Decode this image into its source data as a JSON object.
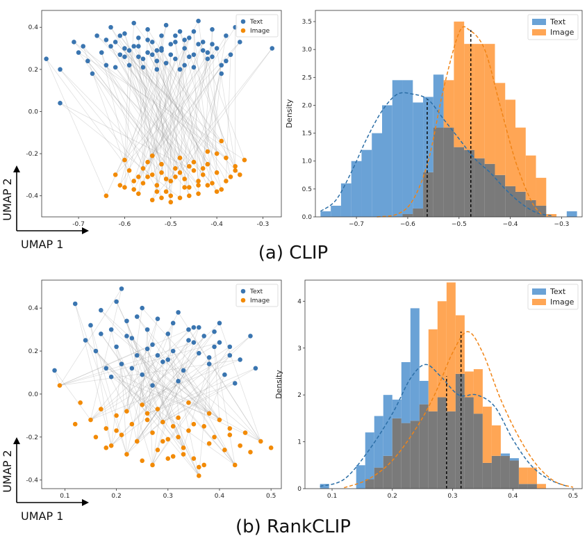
{
  "colors": {
    "text_scatter": "#3a75b0",
    "image_scatter": "#f28a05",
    "text_hist": "#6aa2d6",
    "image_hist": "#ffa655",
    "overlap": "#7a7a7a",
    "text_kde": "#2b6ea6",
    "image_kde": "#f08416",
    "link": "#8f8f8f"
  },
  "captions": [
    "(a) CLIP",
    "(b) RankCLIP"
  ],
  "chart_data": [
    {
      "type": "scatter",
      "panel": "clip-umap",
      "axis_arrow_labels": {
        "x": "UMAP 1",
        "y": "UMAP 2"
      },
      "legend": [
        "Text",
        "Image"
      ],
      "legend_position": "top-right",
      "xlim": [
        -0.78,
        -0.26
      ],
      "ylim": [
        -0.5,
        0.48
      ],
      "xticks": [
        "-0.7",
        "-0.6",
        "-0.5",
        "-0.4",
        "-0.3"
      ],
      "xtick_values": [
        -0.7,
        -0.6,
        -0.5,
        -0.4,
        -0.3
      ],
      "yticks": [
        "-0.4",
        "-0.2",
        "0.0",
        "0.2",
        "0.4"
      ],
      "ytick_values": [
        -0.4,
        -0.2,
        0.0,
        0.2,
        0.4
      ],
      "lines_connect_pairs": true,
      "series": [
        {
          "name": "Text",
          "x": [
            -0.77,
            -0.74,
            -0.74,
            -0.71,
            -0.7,
            -0.69,
            -0.68,
            -0.67,
            -0.66,
            -0.65,
            -0.64,
            -0.63,
            -0.62,
            -0.61,
            -0.6,
            -0.6,
            -0.59,
            -0.58,
            -0.57,
            -0.56,
            -0.55,
            -0.55,
            -0.54,
            -0.53,
            -0.52,
            -0.52,
            -0.51,
            -0.5,
            -0.49,
            -0.48,
            -0.47,
            -0.47,
            -0.46,
            -0.45,
            -0.44,
            -0.43,
            -0.42,
            -0.41,
            -0.4,
            -0.39,
            -0.38,
            -0.37,
            -0.36,
            -0.35,
            -0.28,
            -0.63,
            -0.61,
            -0.59,
            -0.57,
            -0.55,
            -0.53,
            -0.51,
            -0.49,
            -0.47,
            -0.45,
            -0.43,
            -0.41,
            -0.39,
            -0.62,
            -0.58,
            -0.54,
            -0.5,
            -0.46,
            -0.42,
            -0.38,
            -0.56,
            -0.52,
            -0.48,
            -0.44,
            -0.64,
            -0.6,
            -0.57,
            -0.53,
            -0.49,
            -0.45,
            -0.41
          ],
          "y": [
            0.25,
            0.2,
            0.04,
            0.33,
            0.28,
            0.31,
            0.24,
            0.18,
            0.36,
            0.28,
            0.22,
            0.4,
            0.33,
            0.27,
            0.3,
            0.37,
            0.22,
            0.42,
            0.35,
            0.25,
            0.28,
            0.39,
            0.33,
            0.24,
            0.36,
            0.3,
            0.41,
            0.27,
            0.33,
            0.38,
            0.22,
            0.3,
            0.35,
            0.27,
            0.43,
            0.33,
            0.25,
            0.39,
            0.3,
            0.22,
            0.36,
            0.27,
            0.4,
            0.33,
            0.3,
            0.31,
            0.36,
            0.29,
            0.26,
            0.34,
            0.29,
            0.23,
            0.25,
            0.34,
            0.38,
            0.29,
            0.32,
            0.18,
            0.21,
            0.31,
            0.27,
            0.32,
            0.26,
            0.28,
            0.24,
            0.21,
            0.29,
            0.2,
            0.32,
            0.34,
            0.26,
            0.31,
            0.2,
            0.36,
            0.21,
            0.26
          ]
        },
        {
          "name": "Image",
          "x": [
            -0.64,
            -0.62,
            -0.6,
            -0.59,
            -0.58,
            -0.57,
            -0.56,
            -0.55,
            -0.54,
            -0.53,
            -0.52,
            -0.51,
            -0.5,
            -0.49,
            -0.48,
            -0.47,
            -0.46,
            -0.45,
            -0.44,
            -0.43,
            -0.42,
            -0.41,
            -0.4,
            -0.39,
            -0.38,
            -0.37,
            -0.36,
            -0.35,
            -0.34,
            -0.6,
            -0.56,
            -0.52,
            -0.48,
            -0.44,
            -0.4,
            -0.58,
            -0.54,
            -0.5,
            -0.46,
            -0.42,
            -0.55,
            -0.51,
            -0.47,
            -0.43,
            -0.53,
            -0.49,
            -0.45,
            -0.57,
            -0.5,
            -0.44,
            -0.38,
            -0.61,
            -0.52,
            -0.46,
            -0.36,
            -0.48,
            -0.42,
            -0.54,
            -0.4,
            -0.39
          ],
          "y": [
            -0.4,
            -0.3,
            -0.36,
            -0.28,
            -0.33,
            -0.39,
            -0.27,
            -0.31,
            -0.42,
            -0.35,
            -0.29,
            -0.38,
            -0.33,
            -0.27,
            -0.41,
            -0.32,
            -0.36,
            -0.28,
            -0.39,
            -0.3,
            -0.25,
            -0.34,
            -0.29,
            -0.37,
            -0.22,
            -0.31,
            -0.26,
            -0.3,
            -0.23,
            -0.23,
            -0.34,
            -0.25,
            -0.29,
            -0.33,
            -0.38,
            -0.37,
            -0.3,
            -0.4,
            -0.26,
            -0.35,
            -0.24,
            -0.32,
            -0.36,
            -0.27,
            -0.38,
            -0.31,
            -0.24,
            -0.31,
            -0.43,
            -0.35,
            -0.33,
            -0.35,
            -0.41,
            -0.4,
            -0.28,
            -0.22,
            -0.19,
            -0.21,
            -0.2,
            -0.14
          ]
        }
      ]
    },
    {
      "type": "bar",
      "panel": "clip-density",
      "ylabel": "Density",
      "legend": [
        "Text",
        "Image"
      ],
      "legend_position": "top-right",
      "xlim": [
        -0.78,
        -0.26
      ],
      "ylim": [
        0,
        3.7
      ],
      "xticks": [
        "−0.7",
        "−0.6",
        "−0.5",
        "−0.4",
        "−0.3"
      ],
      "xtick_values": [
        -0.7,
        -0.6,
        -0.5,
        -0.4,
        -0.3
      ],
      "yticks": [
        "0.0",
        "0.5",
        "1.0",
        "1.5",
        "2.0",
        "2.5",
        "3.0",
        "3.5"
      ],
      "ytick_values": [
        0,
        0.5,
        1.0,
        1.5,
        2.0,
        2.5,
        3.0,
        3.5
      ],
      "bin_edges": [
        -0.77,
        -0.75,
        -0.73,
        -0.71,
        -0.69,
        -0.67,
        -0.65,
        -0.63,
        -0.61,
        -0.59,
        -0.57,
        -0.55,
        -0.53,
        -0.51,
        -0.49,
        -0.47,
        -0.45,
        -0.43,
        -0.41,
        -0.39,
        -0.37,
        -0.35,
        -0.33,
        -0.31,
        -0.29,
        -0.27
      ],
      "series": [
        {
          "name": "Text",
          "values": [
            0.1,
            0.2,
            0.6,
            1.0,
            1.2,
            1.5,
            2.0,
            2.45,
            2.45,
            2.05,
            2.15,
            2.55,
            1.6,
            1.25,
            1.2,
            1.05,
            0.95,
            0.75,
            0.55,
            0.45,
            0.3,
            0.2,
            0.0,
            0.0,
            0.1
          ]
        },
        {
          "name": "Image",
          "values": [
            0.0,
            0.0,
            0.0,
            0.0,
            0.0,
            0.0,
            0.0,
            0.0,
            0.05,
            0.15,
            0.8,
            1.6,
            2.45,
            3.5,
            3.1,
            3.1,
            3.1,
            2.4,
            2.1,
            1.6,
            1.1,
            0.7,
            0.05,
            0.0,
            0.0
          ]
        }
      ],
      "kde": [
        {
          "name": "Text",
          "x": [
            -0.77,
            -0.74,
            -0.71,
            -0.68,
            -0.65,
            -0.62,
            -0.59,
            -0.56,
            -0.53,
            -0.5,
            -0.47,
            -0.44,
            -0.41,
            -0.38,
            -0.35,
            -0.32
          ],
          "y": [
            0.1,
            0.3,
            0.8,
            1.4,
            1.9,
            2.2,
            2.2,
            2.1,
            1.75,
            1.4,
            1.05,
            0.8,
            0.5,
            0.25,
            0.08,
            0.02
          ]
        },
        {
          "name": "Image",
          "x": [
            -0.66,
            -0.62,
            -0.59,
            -0.56,
            -0.53,
            -0.5,
            -0.48,
            -0.45,
            -0.42,
            -0.39,
            -0.36,
            -0.34
          ],
          "y": [
            0.0,
            0.05,
            0.3,
            1.0,
            2.3,
            3.3,
            3.35,
            3.0,
            2.0,
            1.0,
            0.3,
            0.05
          ]
        }
      ],
      "mean_lines": [
        -0.562,
        -0.477
      ]
    },
    {
      "type": "scatter",
      "panel": "rankclip-umap",
      "axis_arrow_labels": {
        "x": "UMAP 1",
        "y": "UMAP 2"
      },
      "legend": [
        "Text",
        "Image"
      ],
      "legend_position": "top-right",
      "xlim": [
        0.055,
        0.52
      ],
      "ylim": [
        -0.44,
        0.53
      ],
      "xticks": [
        "0.1",
        "0.2",
        "0.3",
        "0.4",
        "0.5"
      ],
      "xtick_values": [
        0.1,
        0.2,
        0.3,
        0.4,
        0.5
      ],
      "yticks": [
        "-0.4",
        "-0.2",
        "0.0",
        "0.2",
        "0.4"
      ],
      "ytick_values": [
        -0.4,
        -0.2,
        0.0,
        0.2,
        0.4
      ],
      "lines_connect_pairs": true,
      "series": [
        {
          "name": "Text",
          "x": [
            0.08,
            0.12,
            0.14,
            0.16,
            0.17,
            0.18,
            0.19,
            0.2,
            0.21,
            0.21,
            0.22,
            0.23,
            0.24,
            0.25,
            0.25,
            0.26,
            0.27,
            0.28,
            0.29,
            0.3,
            0.31,
            0.32,
            0.33,
            0.34,
            0.35,
            0.36,
            0.37,
            0.38,
            0.39,
            0.4,
            0.41,
            0.42,
            0.44,
            0.46,
            0.47,
            0.17,
            0.19,
            0.23,
            0.27,
            0.31,
            0.35,
            0.39,
            0.43,
            0.2,
            0.24,
            0.28,
            0.32,
            0.36,
            0.4,
            0.15,
            0.22,
            0.26,
            0.3,
            0.34,
            0.38,
            0.42
          ],
          "y": [
            0.11,
            0.42,
            0.25,
            0.2,
            0.39,
            0.12,
            0.3,
            0.22,
            0.49,
            0.14,
            0.34,
            0.26,
            0.18,
            0.4,
            0.09,
            0.3,
            0.23,
            0.35,
            0.15,
            0.28,
            0.2,
            0.38,
            0.11,
            0.25,
            0.31,
            0.19,
            0.27,
            0.14,
            0.22,
            0.33,
            0.09,
            0.18,
            0.16,
            0.27,
            0.12,
            0.28,
            0.08,
            0.12,
            0.04,
            0.33,
            0.24,
            0.29,
            0.05,
            0.43,
            0.36,
            0.18,
            0.06,
            0.31,
            0.24,
            0.32,
            0.27,
            0.21,
            0.16,
            0.3,
            0.17,
            0.22
          ]
        },
        {
          "name": "Image",
          "x": [
            0.09,
            0.12,
            0.13,
            0.15,
            0.16,
            0.17,
            0.18,
            0.19,
            0.2,
            0.21,
            0.22,
            0.23,
            0.24,
            0.25,
            0.26,
            0.27,
            0.28,
            0.29,
            0.3,
            0.31,
            0.32,
            0.33,
            0.34,
            0.35,
            0.36,
            0.37,
            0.38,
            0.39,
            0.4,
            0.41,
            0.42,
            0.43,
            0.44,
            0.45,
            0.46,
            0.48,
            0.5,
            0.18,
            0.22,
            0.26,
            0.3,
            0.34,
            0.38,
            0.42,
            0.2,
            0.24,
            0.28,
            0.32,
            0.36,
            0.27,
            0.31,
            0.35,
            0.25,
            0.29,
            0.33,
            0.37
          ],
          "y": [
            0.04,
            -0.14,
            -0.04,
            -0.12,
            -0.2,
            -0.07,
            -0.16,
            -0.24,
            -0.1,
            -0.19,
            -0.28,
            -0.14,
            -0.22,
            -0.31,
            -0.09,
            -0.18,
            -0.26,
            -0.13,
            -0.21,
            -0.29,
            -0.11,
            -0.25,
            -0.17,
            -0.3,
            -0.38,
            -0.15,
            -0.23,
            -0.2,
            -0.12,
            -0.26,
            -0.19,
            -0.33,
            -0.24,
            -0.18,
            -0.27,
            -0.22,
            -0.25,
            -0.25,
            -0.08,
            -0.12,
            -0.3,
            -0.04,
            -0.09,
            -0.16,
            -0.17,
            -0.22,
            -0.07,
            -0.2,
            -0.34,
            -0.33,
            -0.15,
            -0.14,
            -0.05,
            -0.22,
            -0.28,
            -0.33
          ]
        }
      ]
    },
    {
      "type": "bar",
      "panel": "rankclip-density",
      "ylabel": "Density",
      "legend": [
        "Text",
        "Image"
      ],
      "legend_position": "top-right",
      "xlim": [
        0.055,
        0.515
      ],
      "ylim": [
        0,
        4.45
      ],
      "xticks": [
        "0.1",
        "0.2",
        "0.3",
        "0.4",
        "0.5"
      ],
      "xtick_values": [
        0.1,
        0.2,
        0.3,
        0.4,
        0.5
      ],
      "yticks": [
        "0",
        "1",
        "2",
        "3",
        "4"
      ],
      "ytick_values": [
        0,
        1,
        2,
        3,
        4
      ],
      "bin_edges": [
        0.08,
        0.095,
        0.11,
        0.125,
        0.14,
        0.155,
        0.17,
        0.185,
        0.2,
        0.215,
        0.23,
        0.245,
        0.26,
        0.275,
        0.29,
        0.305,
        0.32,
        0.335,
        0.35,
        0.365,
        0.38,
        0.395,
        0.41,
        0.425,
        0.44,
        0.455,
        0.47,
        0.485,
        0.5
      ],
      "series": [
        {
          "name": "Text",
          "values": [
            0.1,
            0.0,
            0.0,
            0.0,
            0.5,
            1.2,
            1.55,
            2.0,
            1.9,
            2.7,
            3.85,
            2.3,
            1.65,
            1.95,
            1.65,
            2.45,
            1.95,
            1.6,
            0.55,
            0.7,
            0.75,
            0.65,
            0.1,
            0.1,
            0.0,
            0.0,
            0.0,
            0.0
          ]
        },
        {
          "name": "Image",
          "values": [
            0.0,
            0.0,
            0.0,
            0.0,
            0.0,
            0.2,
            0.45,
            0.7,
            1.5,
            1.4,
            1.45,
            1.8,
            3.4,
            4.0,
            4.4,
            3.7,
            2.5,
            2.55,
            1.75,
            1.35,
            0.7,
            0.6,
            0.45,
            0.45,
            0.1,
            0.0,
            0.0,
            0.0
          ]
        }
      ],
      "kde": [
        {
          "name": "Text",
          "x": [
            0.08,
            0.12,
            0.16,
            0.2,
            0.23,
            0.255,
            0.28,
            0.31,
            0.34,
            0.37,
            0.4,
            0.43,
            0.46,
            0.49
          ],
          "y": [
            0.05,
            0.2,
            0.8,
            1.6,
            2.35,
            2.65,
            2.4,
            2.0,
            2.0,
            1.75,
            1.05,
            0.5,
            0.2,
            0.05
          ]
        },
        {
          "name": "Image",
          "x": [
            0.12,
            0.16,
            0.2,
            0.24,
            0.27,
            0.3,
            0.325,
            0.35,
            0.38,
            0.41,
            0.44,
            0.47,
            0.5
          ],
          "y": [
            0.02,
            0.2,
            0.6,
            1.3,
            2.0,
            2.9,
            3.35,
            2.9,
            1.9,
            1.1,
            0.5,
            0.15,
            0.03
          ]
        }
      ],
      "mean_lines": [
        0.29,
        0.314
      ]
    }
  ]
}
